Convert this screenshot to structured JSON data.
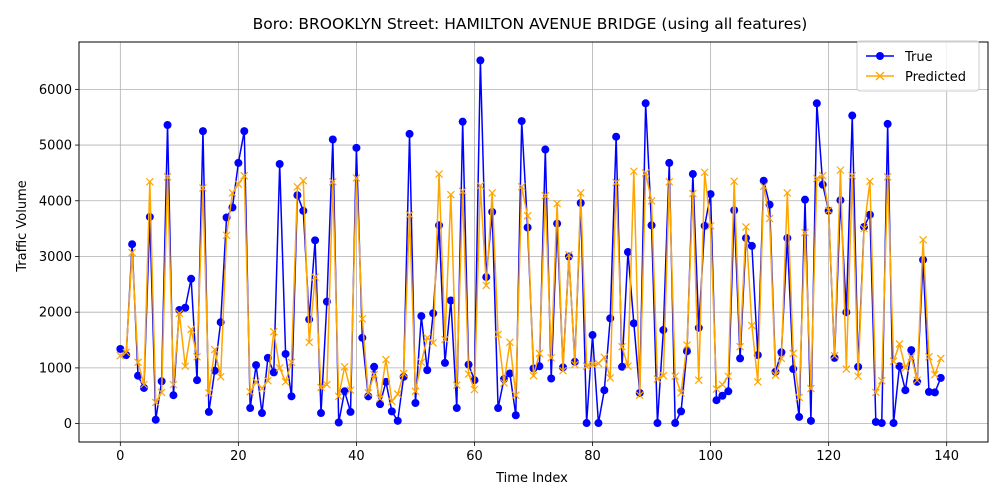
{
  "chart_data": {
    "type": "line",
    "title": "Boro: BROOKLYN Street: HAMILTON AVENUE BRIDGE (using all features)",
    "xlabel": "Time Index",
    "ylabel": "Traffic Volume",
    "xlim": [
      -7,
      147
    ],
    "ylim": [
      -330,
      6850
    ],
    "xticks": [
      0,
      20,
      40,
      60,
      80,
      100,
      120,
      140
    ],
    "yticks": [
      0,
      1000,
      2000,
      3000,
      4000,
      5000,
      6000
    ],
    "grid": true,
    "legend": "top-right",
    "colors": {
      "true": "#0000ff",
      "predicted": "#ffa500"
    },
    "series": [
      {
        "name": "True",
        "marker": "circle",
        "values": [
          1340,
          1230,
          3220,
          860,
          640,
          3710,
          70,
          760,
          5360,
          510,
          2040,
          2080,
          2600,
          780,
          5250,
          210,
          950,
          1820,
          3700,
          3880,
          4680,
          5250,
          280,
          1050,
          190,
          1180,
          920,
          4660,
          1250,
          490,
          4100,
          3820,
          1870,
          3290,
          190,
          2190,
          5100,
          20,
          580,
          210,
          4950,
          1540,
          490,
          1020,
          350,
          750,
          220,
          50,
          840,
          5200,
          370,
          1930,
          960,
          1980,
          3560,
          1090,
          2210,
          280,
          5420,
          1060,
          780,
          6520,
          2630,
          3800,
          280,
          800,
          900,
          150,
          5430,
          3520,
          990,
          1030,
          4920,
          810,
          3590,
          1010,
          3000,
          1110,
          3960,
          10,
          1590,
          10,
          600,
          1890,
          5150,
          1020,
          3080,
          1800,
          550,
          5750,
          3560,
          10,
          1680,
          4680,
          10,
          220,
          1300,
          4480,
          1720,
          3550,
          4120,
          420,
          500,
          580,
          3830,
          1170,
          3330,
          3190,
          1230,
          4360,
          3930,
          930,
          1280,
          3330,
          980,
          120,
          4020,
          50,
          5750,
          4290,
          3820,
          1180,
          4010,
          2000,
          5530,
          1020,
          3530,
          3750,
          30,
          10,
          5380,
          10,
          1030,
          600,
          1320,
          750,
          2940,
          570,
          560,
          820
        ],
        "x": [
          0,
          1,
          2,
          3,
          4,
          5,
          6,
          7,
          8,
          9,
          10,
          11,
          12,
          13,
          14,
          15,
          16,
          17,
          18,
          19,
          20,
          21,
          22,
          23,
          24,
          25,
          26,
          27,
          28,
          29,
          30,
          31,
          32,
          33,
          34,
          35,
          36,
          37,
          38,
          39,
          40,
          41,
          42,
          43,
          44,
          45,
          46,
          47,
          48,
          49,
          50,
          51,
          52,
          53,
          54,
          55,
          56,
          57,
          58,
          59,
          60,
          61,
          62,
          63,
          64,
          65,
          66,
          67,
          68,
          69,
          70,
          71,
          72,
          73,
          74,
          75,
          76,
          77,
          78,
          79,
          80,
          81,
          82,
          83,
          84,
          85,
          86,
          87,
          88,
          89,
          90,
          91,
          92,
          93,
          94,
          95,
          96,
          97,
          98,
          99,
          100,
          101,
          102,
          103,
          104,
          105,
          106,
          107,
          108,
          109,
          110,
          111,
          112,
          113,
          114,
          115,
          116,
          117,
          118,
          119,
          120,
          121,
          122,
          123,
          124,
          125,
          126,
          127,
          128,
          129,
          130,
          131,
          132,
          133,
          134,
          135,
          136,
          137,
          138,
          139
        ]
      },
      {
        "name": "Predicted",
        "marker": "x",
        "values": [
          1220,
          1280,
          3070,
          1100,
          700,
          4340,
          380,
          560,
          4430,
          700,
          1980,
          1030,
          1690,
          1200,
          4230,
          550,
          1330,
          840,
          3380,
          4140,
          4300,
          4450,
          570,
          750,
          630,
          770,
          1650,
          1000,
          750,
          1100,
          4250,
          4360,
          1460,
          2630,
          650,
          700,
          4340,
          490,
          1020,
          600,
          4410,
          1880,
          550,
          880,
          450,
          1150,
          400,
          530,
          900,
          3750,
          580,
          1100,
          1540,
          1450,
          4480,
          1510,
          4110,
          690,
          4170,
          890,
          610,
          4270,
          2480,
          4140,
          1600,
          730,
          1460,
          510,
          4250,
          3730,
          860,
          1260,
          4090,
          1180,
          3950,
          950,
          3030,
          1060,
          4140,
          1030,
          1060,
          1080,
          1190,
          820,
          4330,
          1380,
          1030,
          4530,
          510,
          4500,
          4000,
          800,
          860,
          4340,
          850,
          550,
          1410,
          4130,
          780,
          4510,
          3550,
          620,
          700,
          850,
          4350,
          1380,
          3530,
          1760,
          750,
          4260,
          3680,
          870,
          1170,
          4140,
          1260,
          470,
          3430,
          630,
          4400,
          4450,
          3830,
          1220,
          4550,
          980,
          4450,
          850,
          3500,
          4350,
          560,
          770,
          4430,
          1120,
          1430,
          1000,
          1200,
          780,
          3300,
          1200,
          880,
          1170
        ],
        "x": [
          0,
          1,
          2,
          3,
          4,
          5,
          6,
          7,
          8,
          9,
          10,
          11,
          12,
          13,
          14,
          15,
          16,
          17,
          18,
          19,
          20,
          21,
          22,
          23,
          24,
          25,
          26,
          27,
          28,
          29,
          30,
          31,
          32,
          33,
          34,
          35,
          36,
          37,
          38,
          39,
          40,
          41,
          42,
          43,
          44,
          45,
          46,
          47,
          48,
          49,
          50,
          51,
          52,
          53,
          54,
          55,
          56,
          57,
          58,
          59,
          60,
          61,
          62,
          63,
          64,
          65,
          66,
          67,
          68,
          69,
          70,
          71,
          72,
          73,
          74,
          75,
          76,
          77,
          78,
          79,
          80,
          81,
          82,
          83,
          84,
          85,
          86,
          87,
          88,
          89,
          90,
          91,
          92,
          93,
          94,
          95,
          96,
          97,
          98,
          99,
          100,
          101,
          102,
          103,
          104,
          105,
          106,
          107,
          108,
          109,
          110,
          111,
          112,
          113,
          114,
          115,
          116,
          117,
          118,
          119,
          120,
          121,
          122,
          123,
          124,
          125,
          126,
          127,
          128,
          129,
          130,
          131,
          132,
          133,
          134,
          135,
          136,
          137,
          138,
          139
        ]
      }
    ]
  }
}
